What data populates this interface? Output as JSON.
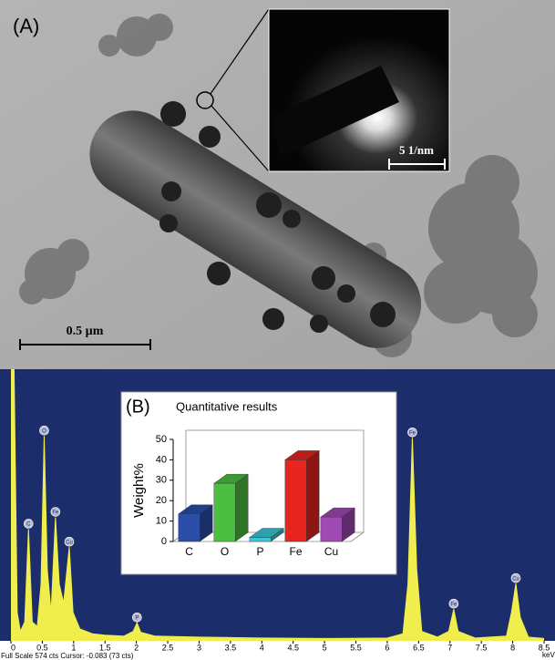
{
  "panel_a": {
    "label": "(A)",
    "scale_bar": "0.5 µm",
    "inset_scale_bar": "5 1/nm"
  },
  "chart_data": [
    {
      "type": "area",
      "xlabel": "keV",
      "footer": "Full Scale 574 cts Cursor: -0.083 (73 cts)",
      "color": "#f0ee4c",
      "background": "#1c2d6c",
      "x": [
        0,
        0.05,
        0.1,
        0.15,
        0.22,
        0.28,
        0.34,
        0.42,
        0.48,
        0.53,
        0.58,
        0.64,
        0.71,
        0.77,
        0.84,
        0.93,
        0.99,
        1.1,
        1.3,
        1.5,
        1.8,
        1.95,
        2.01,
        2.07,
        2.3,
        3,
        4,
        5,
        6,
        6.25,
        6.33,
        6.4,
        6.47,
        6.55,
        6.8,
        6.98,
        7.06,
        7.13,
        7.4,
        7.9,
        7.98,
        8.05,
        8.12,
        8.25,
        8.5
      ],
      "values": [
        574,
        574,
        60,
        20,
        40,
        236,
        40,
        30,
        120,
        433,
        150,
        60,
        261,
        120,
        80,
        198,
        60,
        25,
        15,
        12,
        10,
        20,
        38,
        18,
        10,
        8,
        6,
        5,
        6,
        15,
        120,
        429,
        150,
        20,
        8,
        20,
        67,
        20,
        6,
        10,
        60,
        121,
        50,
        8,
        5
      ],
      "xlim": [
        0,
        8.5
      ],
      "xticks": [
        0,
        0.5,
        1,
        1.5,
        2,
        2.5,
        3,
        3.5,
        4,
        4.5,
        5,
        5.5,
        6,
        6.5,
        7,
        7.5,
        8,
        8.5
      ],
      "ylim": [
        0,
        574
      ],
      "annotations": [
        {
          "text": "C",
          "x": 0.28
        },
        {
          "text": "O",
          "x": 0.53
        },
        {
          "text": "Fe",
          "x": 0.71
        },
        {
          "text": "Cu",
          "x": 0.93
        },
        {
          "text": "P",
          "x": 2.01
        },
        {
          "text": "Fe",
          "x": 6.4
        },
        {
          "text": "Fe",
          "x": 7.06
        },
        {
          "text": "Cu",
          "x": 8.05
        }
      ]
    },
    {
      "type": "bar3d",
      "label": "(B)",
      "title": "Quantitative results",
      "ylabel": "Weight%",
      "categories": [
        "C",
        "O",
        "P",
        "Fe",
        "Cu"
      ],
      "values": [
        13.5,
        28.5,
        2,
        40,
        12
      ],
      "colors": [
        "#2b4ea6",
        "#4cbf40",
        "#3cc6d6",
        "#e8241f",
        "#a04ab4"
      ],
      "ylim": [
        0,
        50
      ],
      "yticks": [
        0,
        10,
        20,
        30,
        40,
        50
      ]
    }
  ]
}
